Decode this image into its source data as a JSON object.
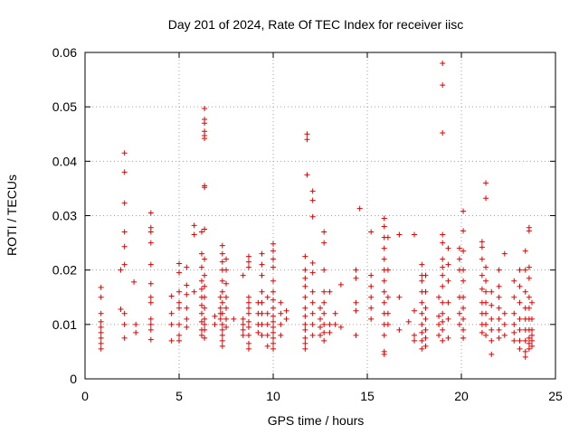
{
  "chart_data": {
    "type": "scatter",
    "title": "Day 201 of 2024, Rate Of TEC Index for receiver iisc",
    "xlabel": "GPS time / hours",
    "ylabel": "ROTI / TECUs",
    "xlim": [
      0,
      25
    ],
    "ylim": [
      0,
      0.06
    ],
    "xticks": [
      0,
      5,
      10,
      15,
      20,
      25
    ],
    "xtick_labels": [
      "0",
      "5",
      "10",
      "15",
      "20",
      "25"
    ],
    "yticks": [
      0,
      0.01,
      0.02,
      0.03,
      0.04,
      0.05,
      0.06
    ],
    "ytick_labels": [
      "0",
      "0.01",
      "0.02",
      "0.03",
      "0.04",
      "0.05",
      "0.06"
    ],
    "grid": true,
    "marker": "plus",
    "color": "#e00000",
    "points": [
      [
        0.85,
        0.0055
      ],
      [
        0.85,
        0.0065
      ],
      [
        0.85,
        0.0075
      ],
      [
        0.85,
        0.0085
      ],
      [
        0.85,
        0.0095
      ],
      [
        0.85,
        0.0105
      ],
      [
        0.85,
        0.012
      ],
      [
        0.85,
        0.015
      ],
      [
        0.85,
        0.0168
      ],
      [
        1.9,
        0.02
      ],
      [
        1.9,
        0.0128
      ],
      [
        2.1,
        0.0415
      ],
      [
        2.1,
        0.038
      ],
      [
        2.1,
        0.0323
      ],
      [
        2.1,
        0.027
      ],
      [
        2.1,
        0.0243
      ],
      [
        2.1,
        0.021
      ],
      [
        2.1,
        0.012
      ],
      [
        2.1,
        0.01
      ],
      [
        2.1,
        0.0075
      ],
      [
        2.6,
        0.0178
      ],
      [
        2.7,
        0.01
      ],
      [
        2.7,
        0.0085
      ],
      [
        3.5,
        0.0305
      ],
      [
        3.5,
        0.0278
      ],
      [
        3.5,
        0.027
      ],
      [
        3.5,
        0.025
      ],
      [
        3.5,
        0.021
      ],
      [
        3.5,
        0.0175
      ],
      [
        3.5,
        0.015
      ],
      [
        3.5,
        0.014
      ],
      [
        3.5,
        0.011
      ],
      [
        3.5,
        0.01
      ],
      [
        3.5,
        0.009
      ],
      [
        3.5,
        0.0072
      ],
      [
        4.6,
        0.0152
      ],
      [
        4.6,
        0.012
      ],
      [
        4.6,
        0.01
      ],
      [
        4.6,
        0.007
      ],
      [
        5.0,
        0.0212
      ],
      [
        5.0,
        0.0195
      ],
      [
        5.0,
        0.016
      ],
      [
        5.0,
        0.014
      ],
      [
        5.0,
        0.013
      ],
      [
        5.0,
        0.01
      ],
      [
        5.0,
        0.008
      ],
      [
        5.0,
        0.007
      ],
      [
        5.4,
        0.0205
      ],
      [
        5.4,
        0.0172
      ],
      [
        5.4,
        0.0155
      ],
      [
        5.4,
        0.013
      ],
      [
        5.4,
        0.011
      ],
      [
        5.4,
        0.0095
      ],
      [
        5.8,
        0.0282
      ],
      [
        5.8,
        0.0265
      ],
      [
        5.8,
        0.016
      ],
      [
        6.2,
        0.027
      ],
      [
        6.2,
        0.023
      ],
      [
        6.2,
        0.0205
      ],
      [
        6.2,
        0.018
      ],
      [
        6.2,
        0.0165
      ],
      [
        6.2,
        0.015
      ],
      [
        6.2,
        0.0135
      ],
      [
        6.2,
        0.012
      ],
      [
        6.2,
        0.0105
      ],
      [
        6.2,
        0.009
      ],
      [
        6.2,
        0.008
      ],
      [
        6.35,
        0.0497
      ],
      [
        6.35,
        0.0477
      ],
      [
        6.35,
        0.047
      ],
      [
        6.35,
        0.0455
      ],
      [
        6.35,
        0.0447
      ],
      [
        6.35,
        0.0442
      ],
      [
        6.35,
        0.0355
      ],
      [
        6.35,
        0.0352
      ],
      [
        6.35,
        0.0275
      ],
      [
        6.35,
        0.022
      ],
      [
        6.35,
        0.019
      ],
      [
        6.35,
        0.017
      ],
      [
        6.35,
        0.015
      ],
      [
        6.35,
        0.013
      ],
      [
        6.35,
        0.011
      ],
      [
        6.35,
        0.01
      ],
      [
        6.35,
        0.009
      ],
      [
        6.35,
        0.0075
      ],
      [
        6.9,
        0.0115
      ],
      [
        6.9,
        0.01
      ],
      [
        7.2,
        0.015
      ],
      [
        7.2,
        0.013
      ],
      [
        7.2,
        0.012
      ],
      [
        7.2,
        0.011
      ],
      [
        7.3,
        0.0245
      ],
      [
        7.3,
        0.023
      ],
      [
        7.3,
        0.0215
      ],
      [
        7.3,
        0.02
      ],
      [
        7.3,
        0.018
      ],
      [
        7.3,
        0.016
      ],
      [
        7.3,
        0.014
      ],
      [
        7.3,
        0.012
      ],
      [
        7.3,
        0.01
      ],
      [
        7.3,
        0.009
      ],
      [
        7.3,
        0.008
      ],
      [
        7.3,
        0.007
      ],
      [
        7.3,
        0.006
      ],
      [
        7.5,
        0.022
      ],
      [
        7.5,
        0.02
      ],
      [
        7.5,
        0.0175
      ],
      [
        7.5,
        0.015
      ],
      [
        7.5,
        0.013
      ],
      [
        7.5,
        0.011
      ],
      [
        7.5,
        0.0095
      ],
      [
        7.9,
        0.011
      ],
      [
        8.4,
        0.019
      ],
      [
        8.4,
        0.011
      ],
      [
        8.4,
        0.01
      ],
      [
        8.4,
        0.009
      ],
      [
        8.4,
        0.008
      ],
      [
        8.7,
        0.0225
      ],
      [
        8.7,
        0.0215
      ],
      [
        8.7,
        0.0205
      ],
      [
        8.7,
        0.015
      ],
      [
        8.7,
        0.014
      ],
      [
        8.7,
        0.013
      ],
      [
        8.7,
        0.012
      ],
      [
        8.7,
        0.0105
      ],
      [
        8.7,
        0.0095
      ],
      [
        8.7,
        0.008
      ],
      [
        8.7,
        0.0065
      ],
      [
        8.7,
        0.0055
      ],
      [
        9.2,
        0.014
      ],
      [
        9.2,
        0.012
      ],
      [
        9.2,
        0.01
      ],
      [
        9.2,
        0.0085
      ],
      [
        9.4,
        0.023
      ],
      [
        9.4,
        0.021
      ],
      [
        9.4,
        0.019
      ],
      [
        9.4,
        0.016
      ],
      [
        9.4,
        0.014
      ],
      [
        9.4,
        0.012
      ],
      [
        9.4,
        0.01
      ],
      [
        9.4,
        0.008
      ],
      [
        9.7,
        0.015
      ],
      [
        9.7,
        0.012
      ],
      [
        9.7,
        0.01
      ],
      [
        9.7,
        0.008
      ],
      [
        9.7,
        0.006
      ],
      [
        10.0,
        0.0248
      ],
      [
        10.0,
        0.0235
      ],
      [
        10.0,
        0.022
      ],
      [
        10.0,
        0.0205
      ],
      [
        10.0,
        0.018
      ],
      [
        10.0,
        0.016
      ],
      [
        10.0,
        0.0145
      ],
      [
        10.0,
        0.013
      ],
      [
        10.0,
        0.0115
      ],
      [
        10.0,
        0.0105
      ],
      [
        10.0,
        0.0095
      ],
      [
        10.0,
        0.0085
      ],
      [
        10.0,
        0.0075
      ],
      [
        10.0,
        0.0065
      ],
      [
        10.0,
        0.0055
      ],
      [
        10.4,
        0.014
      ],
      [
        10.4,
        0.012
      ],
      [
        10.4,
        0.01
      ],
      [
        10.4,
        0.008
      ],
      [
        10.7,
        0.0125
      ],
      [
        10.7,
        0.011
      ],
      [
        11.7,
        0.0225
      ],
      [
        11.7,
        0.02
      ],
      [
        11.7,
        0.0185
      ],
      [
        11.7,
        0.017
      ],
      [
        11.7,
        0.015
      ],
      [
        11.7,
        0.013
      ],
      [
        11.7,
        0.0115
      ],
      [
        11.7,
        0.01
      ],
      [
        11.7,
        0.009
      ],
      [
        11.7,
        0.0075
      ],
      [
        11.7,
        0.0065
      ],
      [
        11.7,
        0.0055
      ],
      [
        11.8,
        0.045
      ],
      [
        11.8,
        0.044
      ],
      [
        11.8,
        0.0375
      ],
      [
        12.1,
        0.0345
      ],
      [
        12.1,
        0.0328
      ],
      [
        12.1,
        0.0298
      ],
      [
        12.1,
        0.0213
      ],
      [
        12.1,
        0.0195
      ],
      [
        12.1,
        0.016
      ],
      [
        12.1,
        0.014
      ],
      [
        12.1,
        0.012
      ],
      [
        12.1,
        0.01
      ],
      [
        12.1,
        0.008
      ],
      [
        12.5,
        0.013
      ],
      [
        12.5,
        0.011
      ],
      [
        12.5,
        0.0095
      ],
      [
        12.5,
        0.008
      ],
      [
        12.7,
        0.027
      ],
      [
        12.7,
        0.025
      ],
      [
        12.7,
        0.02
      ],
      [
        12.7,
        0.016
      ],
      [
        12.7,
        0.014
      ],
      [
        12.7,
        0.012
      ],
      [
        12.7,
        0.01
      ],
      [
        12.7,
        0.0085
      ],
      [
        12.7,
        0.007
      ],
      [
        13.0,
        0.016
      ],
      [
        13.0,
        0.01
      ],
      [
        13.0,
        0.0085
      ],
      [
        13.3,
        0.012
      ],
      [
        13.3,
        0.01
      ],
      [
        13.6,
        0.0173
      ],
      [
        13.6,
        0.0095
      ],
      [
        14.4,
        0.02
      ],
      [
        14.4,
        0.0185
      ],
      [
        14.4,
        0.014
      ],
      [
        14.4,
        0.0125
      ],
      [
        14.4,
        0.008
      ],
      [
        14.6,
        0.0313
      ],
      [
        15.2,
        0.027
      ],
      [
        15.2,
        0.019
      ],
      [
        15.2,
        0.017
      ],
      [
        15.2,
        0.015
      ],
      [
        15.2,
        0.013
      ],
      [
        15.2,
        0.011
      ],
      [
        15.9,
        0.0295
      ],
      [
        15.9,
        0.028
      ],
      [
        15.9,
        0.026
      ],
      [
        15.9,
        0.024
      ],
      [
        15.9,
        0.022
      ],
      [
        15.9,
        0.02
      ],
      [
        15.9,
        0.018
      ],
      [
        15.9,
        0.016
      ],
      [
        15.9,
        0.014
      ],
      [
        15.9,
        0.012
      ],
      [
        15.9,
        0.01
      ],
      [
        15.9,
        0.008
      ],
      [
        15.9,
        0.005
      ],
      [
        15.9,
        0.0045
      ],
      [
        16.1,
        0.026
      ],
      [
        16.1,
        0.02
      ],
      [
        16.1,
        0.015
      ],
      [
        16.1,
        0.012
      ],
      [
        16.1,
        0.01
      ],
      [
        16.7,
        0.0265
      ],
      [
        16.7,
        0.015
      ],
      [
        16.7,
        0.009
      ],
      [
        17.2,
        0.0105
      ],
      [
        17.5,
        0.0265
      ],
      [
        17.5,
        0.0125
      ],
      [
        17.5,
        0.008
      ],
      [
        17.5,
        0.007
      ],
      [
        17.9,
        0.021
      ],
      [
        17.9,
        0.019
      ],
      [
        17.9,
        0.018
      ],
      [
        17.9,
        0.016
      ],
      [
        17.9,
        0.014
      ],
      [
        17.9,
        0.012
      ],
      [
        17.9,
        0.01
      ],
      [
        17.9,
        0.0085
      ],
      [
        17.9,
        0.007
      ],
      [
        17.9,
        0.0055
      ],
      [
        18.1,
        0.019
      ],
      [
        18.1,
        0.016
      ],
      [
        18.1,
        0.013
      ],
      [
        18.1,
        0.011
      ],
      [
        18.1,
        0.009
      ],
      [
        18.1,
        0.0075
      ],
      [
        18.1,
        0.006
      ],
      [
        18.8,
        0.015
      ],
      [
        18.8,
        0.0115
      ],
      [
        18.8,
        0.01
      ],
      [
        18.8,
        0.008
      ],
      [
        19.0,
        0.058
      ],
      [
        19.0,
        0.054
      ],
      [
        19.0,
        0.0452
      ],
      [
        19.0,
        0.0265
      ],
      [
        19.0,
        0.025
      ],
      [
        19.0,
        0.022
      ],
      [
        19.0,
        0.0205
      ],
      [
        19.0,
        0.019
      ],
      [
        19.0,
        0.017
      ],
      [
        19.0,
        0.014
      ],
      [
        19.0,
        0.012
      ],
      [
        19.0,
        0.0105
      ],
      [
        19.0,
        0.009
      ],
      [
        19.0,
        0.007
      ],
      [
        19.3,
        0.024
      ],
      [
        19.3,
        0.021
      ],
      [
        19.3,
        0.018
      ],
      [
        19.3,
        0.014
      ],
      [
        19.3,
        0.011
      ],
      [
        19.3,
        0.0075
      ],
      [
        19.9,
        0.024
      ],
      [
        19.9,
        0.022
      ],
      [
        19.9,
        0.02
      ],
      [
        19.9,
        0.015
      ],
      [
        19.9,
        0.012
      ],
      [
        19.9,
        0.01
      ],
      [
        20.1,
        0.0308
      ],
      [
        20.1,
        0.0272
      ],
      [
        20.1,
        0.0235
      ],
      [
        20.1,
        0.02
      ],
      [
        20.1,
        0.018
      ],
      [
        20.1,
        0.015
      ],
      [
        20.1,
        0.013
      ],
      [
        20.1,
        0.011
      ],
      [
        20.1,
        0.009
      ],
      [
        20.1,
        0.0075
      ],
      [
        21.1,
        0.0252
      ],
      [
        21.1,
        0.0242
      ],
      [
        21.1,
        0.022
      ],
      [
        21.1,
        0.019
      ],
      [
        21.1,
        0.0165
      ],
      [
        21.1,
        0.014
      ],
      [
        21.1,
        0.012
      ],
      [
        21.1,
        0.01
      ],
      [
        21.1,
        0.0085
      ],
      [
        21.3,
        0.036
      ],
      [
        21.3,
        0.0332
      ],
      [
        21.3,
        0.0205
      ],
      [
        21.3,
        0.018
      ],
      [
        21.3,
        0.016
      ],
      [
        21.3,
        0.014
      ],
      [
        21.3,
        0.012
      ],
      [
        21.3,
        0.01
      ],
      [
        21.3,
        0.008
      ],
      [
        21.6,
        0.016
      ],
      [
        21.6,
        0.0135
      ],
      [
        21.6,
        0.011
      ],
      [
        21.6,
        0.009
      ],
      [
        21.6,
        0.007
      ],
      [
        21.6,
        0.0045
      ],
      [
        22.0,
        0.02
      ],
      [
        22.0,
        0.017
      ],
      [
        22.0,
        0.015
      ],
      [
        22.0,
        0.013
      ],
      [
        22.0,
        0.011
      ],
      [
        22.0,
        0.009
      ],
      [
        22.0,
        0.0075
      ],
      [
        22.3,
        0.023
      ],
      [
        22.3,
        0.012
      ],
      [
        22.3,
        0.01
      ],
      [
        22.3,
        0.008
      ],
      [
        22.8,
        0.018
      ],
      [
        22.8,
        0.015
      ],
      [
        22.8,
        0.012
      ],
      [
        22.8,
        0.01
      ],
      [
        22.8,
        0.0085
      ],
      [
        22.8,
        0.007
      ],
      [
        23.1,
        0.02
      ],
      [
        23.1,
        0.017
      ],
      [
        23.1,
        0.014
      ],
      [
        23.1,
        0.011
      ],
      [
        23.1,
        0.009
      ],
      [
        23.1,
        0.007
      ],
      [
        23.1,
        0.0055
      ],
      [
        23.4,
        0.0235
      ],
      [
        23.4,
        0.02
      ],
      [
        23.4,
        0.016
      ],
      [
        23.4,
        0.013
      ],
      [
        23.4,
        0.011
      ],
      [
        23.4,
        0.009
      ],
      [
        23.4,
        0.007
      ],
      [
        23.4,
        0.005
      ],
      [
        23.4,
        0.004
      ],
      [
        23.6,
        0.0278
      ],
      [
        23.6,
        0.0272
      ],
      [
        23.6,
        0.0205
      ],
      [
        23.6,
        0.0185
      ],
      [
        23.6,
        0.015
      ],
      [
        23.6,
        0.013
      ],
      [
        23.6,
        0.011
      ],
      [
        23.6,
        0.009
      ],
      [
        23.6,
        0.0075
      ],
      [
        23.6,
        0.0065
      ],
      [
        23.6,
        0.0055
      ],
      [
        23.75,
        0.014
      ],
      [
        23.75,
        0.011
      ],
      [
        23.75,
        0.009
      ],
      [
        23.75,
        0.008
      ],
      [
        23.75,
        0.007
      ],
      [
        23.75,
        0.006
      ]
    ]
  }
}
